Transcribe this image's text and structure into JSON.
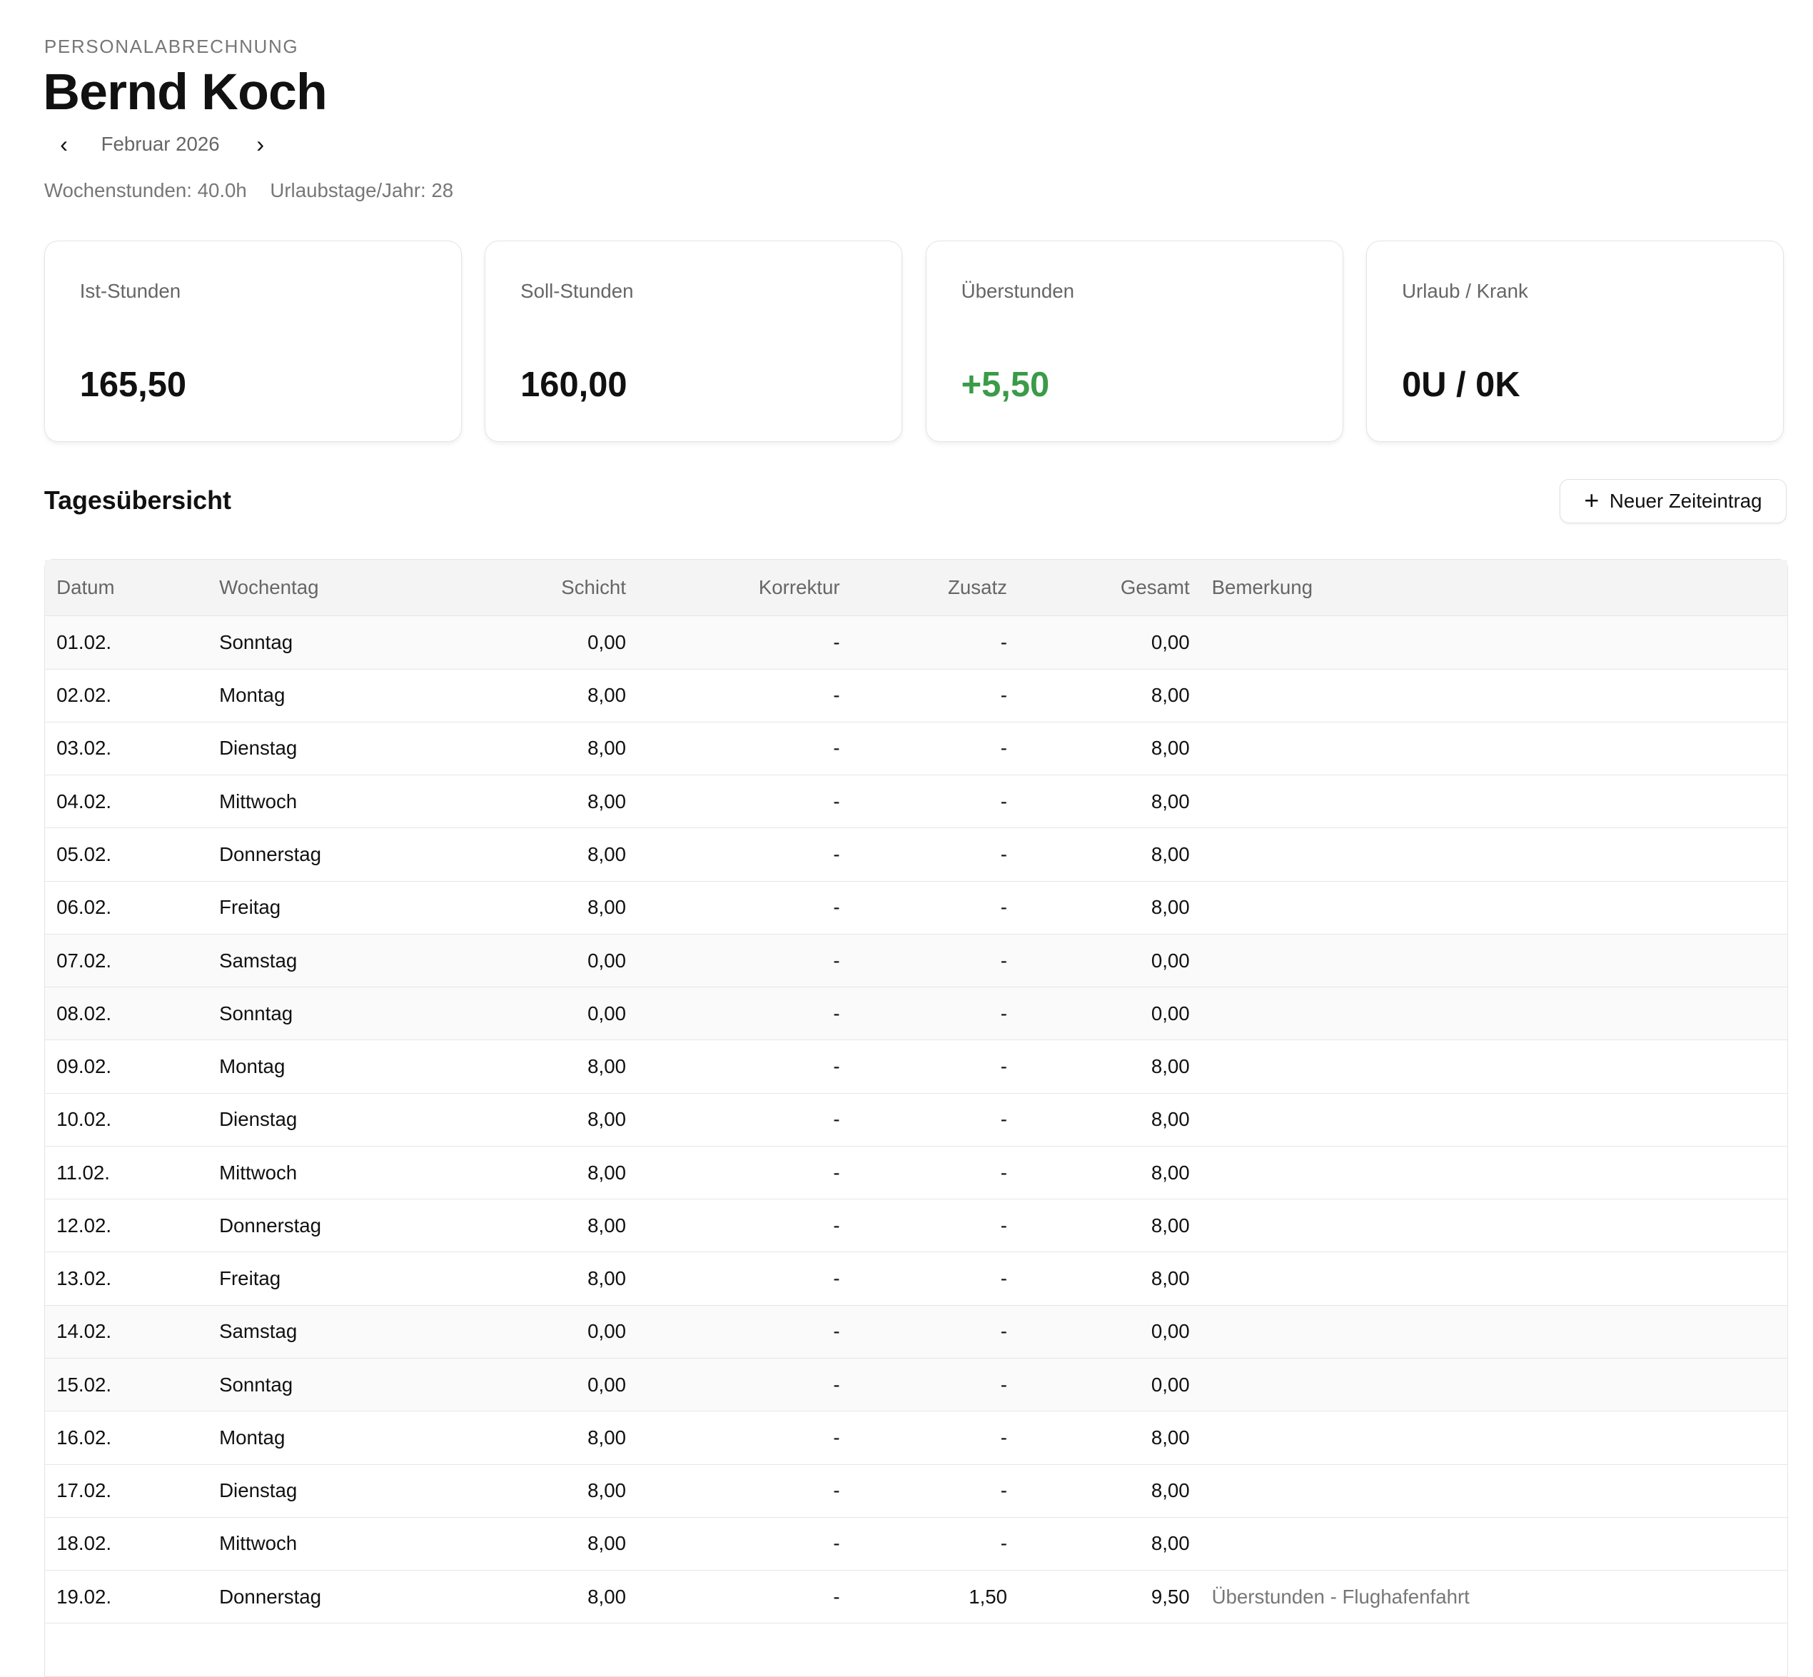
{
  "header": {
    "eyebrow": "PERSONALABRECHNUNG",
    "name": "Bernd Koch",
    "month": "Februar 2026",
    "prev_icon": "chevron-left-icon",
    "next_icon": "chevron-right-icon",
    "weekly_hours": "Wochenstunden: 40.0h",
    "vacation_days": "Urlaubstage/Jahr: 28"
  },
  "cards": [
    {
      "label": "Ist-Stunden",
      "value": "165,50"
    },
    {
      "label": "Soll-Stunden",
      "value": "160,00"
    },
    {
      "label": "Überstunden",
      "value": "+5,50",
      "color": "#3a9b48"
    },
    {
      "label": "Urlaub / Krank",
      "value": "0U / 0K"
    }
  ],
  "section": {
    "title": "Tagesübersicht",
    "add_button": "Neuer Zeiteintrag",
    "add_icon": "plus-icon"
  },
  "table": {
    "columns": [
      "Datum",
      "Wochentag",
      "Schicht",
      "Korrektur",
      "Zusatz",
      "Gesamt",
      "Bemerkung"
    ],
    "rows": [
      [
        "01.02.",
        "Sonntag",
        "0,00",
        "-",
        "-",
        "0,00",
        ""
      ],
      [
        "02.02.",
        "Montag",
        "8,00",
        "-",
        "-",
        "8,00",
        ""
      ],
      [
        "03.02.",
        "Dienstag",
        "8,00",
        "-",
        "-",
        "8,00",
        ""
      ],
      [
        "04.02.",
        "Mittwoch",
        "8,00",
        "-",
        "-",
        "8,00",
        ""
      ],
      [
        "05.02.",
        "Donnerstag",
        "8,00",
        "-",
        "-",
        "8,00",
        ""
      ],
      [
        "06.02.",
        "Freitag",
        "8,00",
        "-",
        "-",
        "8,00",
        ""
      ],
      [
        "07.02.",
        "Samstag",
        "0,00",
        "-",
        "-",
        "0,00",
        ""
      ],
      [
        "08.02.",
        "Sonntag",
        "0,00",
        "-",
        "-",
        "0,00",
        ""
      ],
      [
        "09.02.",
        "Montag",
        "8,00",
        "-",
        "-",
        "8,00",
        ""
      ],
      [
        "10.02.",
        "Dienstag",
        "8,00",
        "-",
        "-",
        "8,00",
        ""
      ],
      [
        "11.02.",
        "Mittwoch",
        "8,00",
        "-",
        "-",
        "8,00",
        ""
      ],
      [
        "12.02.",
        "Donnerstag",
        "8,00",
        "-",
        "-",
        "8,00",
        ""
      ],
      [
        "13.02.",
        "Freitag",
        "8,00",
        "-",
        "-",
        "8,00",
        ""
      ],
      [
        "14.02.",
        "Samstag",
        "0,00",
        "-",
        "-",
        "0,00",
        ""
      ],
      [
        "15.02.",
        "Sonntag",
        "0,00",
        "-",
        "-",
        "0,00",
        ""
      ],
      [
        "16.02.",
        "Montag",
        "8,00",
        "-",
        "-",
        "8,00",
        ""
      ],
      [
        "17.02.",
        "Dienstag",
        "8,00",
        "-",
        "-",
        "8,00",
        ""
      ],
      [
        "18.02.",
        "Mittwoch",
        "8,00",
        "-",
        "-",
        "8,00",
        ""
      ],
      [
        "19.02.",
        "Donnerstag",
        "8,00",
        "-",
        "1,50",
        "9,50",
        "Überstunden - Flughafenfahrt"
      ]
    ]
  }
}
